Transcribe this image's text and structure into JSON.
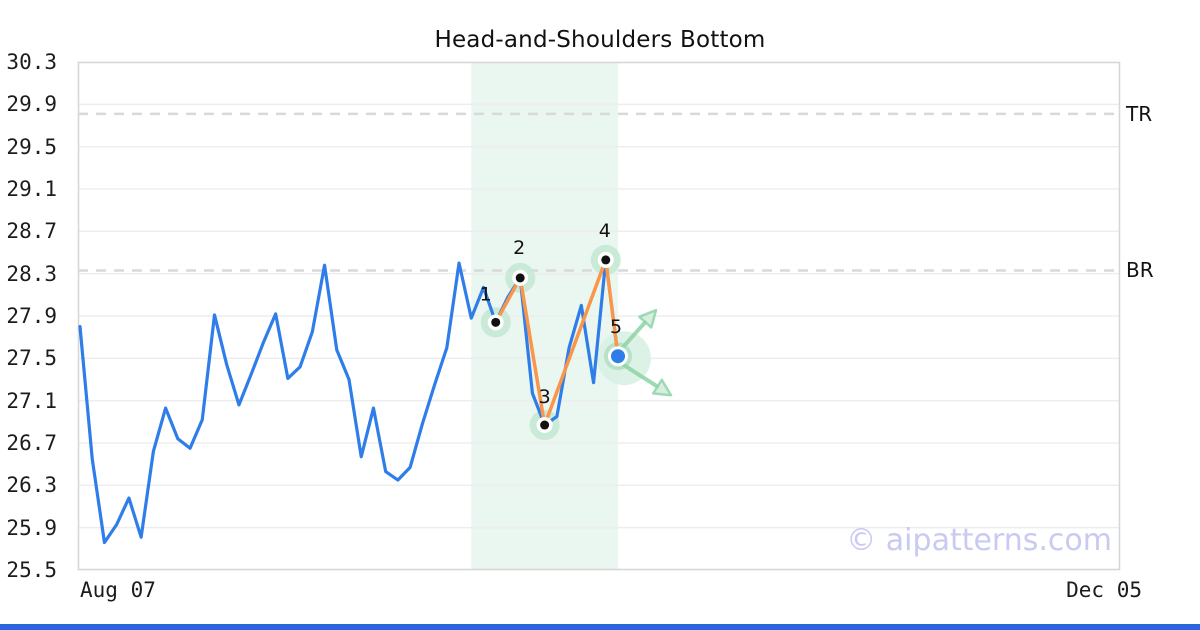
{
  "title": "Head-and-Shoulders Bottom",
  "watermark": "© aipatterns.com",
  "x_axis": {
    "left_label": "Aug 07",
    "right_label": "Dec 05"
  },
  "right_labels": {
    "top": "TR",
    "bottom": "BR"
  },
  "colors": {
    "price_line": "#2e7de9",
    "pattern_line": "#f9964a",
    "halo": "#c3e7d1",
    "halo_inner_strong": "#b4e0c5",
    "halo_outer_soft": "#d9f1e3",
    "arrow_stroke": "#93d5aa",
    "arrow_head_fill": "#d3eedd",
    "band": "#eaf6f0",
    "grid": "#ededed",
    "frame": "#d5d5d5",
    "dashed_level": "#d9d9d9",
    "marker_black": "#111111",
    "marker_white": "#ffffff",
    "point5_blue": "#2e7de9",
    "watermark": "#c8caf2",
    "bottom_bar": "#2b64dd",
    "text": "#111111"
  },
  "chart_data": {
    "type": "line",
    "title": "Head-and-Shoulders Bottom",
    "xlabel": "",
    "ylabel": "",
    "x_tick_labels": [
      "Aug 07",
      "Dec 05"
    ],
    "y_ticks": [
      30.3,
      29.9,
      29.5,
      29.1,
      28.7,
      28.3,
      27.9,
      27.5,
      27.1,
      26.7,
      26.3,
      25.9,
      25.5
    ],
    "ylim": [
      25.5,
      30.3
    ],
    "grid": true,
    "legend": false,
    "series": [
      {
        "name": "price",
        "color": "#2e7de9",
        "values": [
          27.8,
          26.55,
          25.76,
          25.93,
          26.18,
          25.81,
          26.62,
          27.03,
          26.74,
          26.65,
          26.92,
          27.91,
          27.44,
          27.06,
          27.35,
          27.65,
          27.92,
          27.31,
          27.42,
          27.75,
          28.38,
          27.58,
          27.3,
          26.57,
          27.03,
          26.43,
          26.35,
          26.47,
          26.88,
          27.25,
          27.6,
          28.4,
          27.88,
          28.17,
          27.84,
          28.08,
          28.26,
          27.17,
          26.87,
          26.95,
          27.6,
          28.0,
          27.27,
          28.43,
          27.52
        ]
      }
    ],
    "pattern_overlay": {
      "name": "head-and-shoulders-bottom",
      "color": "#f9964a",
      "points": [
        {
          "label": "1",
          "index": 34,
          "value": 27.84
        },
        {
          "label": "2",
          "index": 36,
          "value": 28.26
        },
        {
          "label": "3",
          "index": 38,
          "value": 26.87
        },
        {
          "label": "4",
          "index": 43,
          "value": 28.43
        },
        {
          "label": "5",
          "index": 44,
          "value": 27.52,
          "current": true
        }
      ]
    },
    "levels": [
      {
        "label": "TR",
        "value": 29.81,
        "style": "dashed"
      },
      {
        "label": "BR",
        "value": 28.33,
        "style": "dashed"
      }
    ],
    "highlight_band_index_range": [
      32,
      44
    ],
    "forecast_arrows": [
      {
        "direction": "up-right"
      },
      {
        "direction": "down-right"
      }
    ]
  }
}
